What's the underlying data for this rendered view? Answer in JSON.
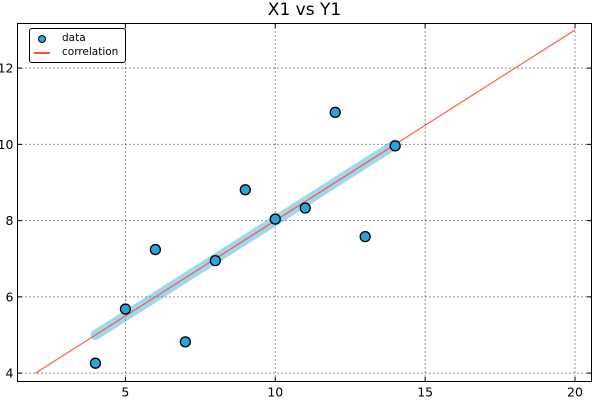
{
  "chart_data": {
    "type": "scatter",
    "title": "X1 vs Y1",
    "xlabel": "",
    "ylabel": "",
    "series": [
      {
        "name": "data",
        "kind": "scatter",
        "x": [
          10,
          8,
          13,
          9,
          11,
          14,
          6,
          4,
          12,
          7,
          5
        ],
        "y": [
          8.04,
          6.95,
          7.58,
          8.81,
          8.33,
          9.96,
          7.24,
          4.26,
          10.84,
          4.82,
          5.68
        ]
      },
      {
        "name": "correlation",
        "kind": "line",
        "x": [
          2,
          20
        ],
        "y": [
          4,
          13
        ]
      }
    ],
    "fit_band": {
      "x": [
        4,
        14
      ],
      "y": [
        5,
        10
      ]
    },
    "xlim": [
      1.4,
      20.55
    ],
    "ylim": [
      3.78,
      13.17
    ],
    "xticks": [
      5,
      10,
      15,
      20
    ],
    "yticks": [
      4,
      6,
      8,
      10,
      12
    ],
    "grid": "dotted",
    "legend": {
      "position": "upper left",
      "items": [
        "data",
        "correlation"
      ]
    },
    "colors": {
      "scatter_fill": "#30a2da",
      "scatter_edge": "#000000",
      "line": "#fc4f30",
      "band": "#30a2da",
      "band_opacity": 0.45,
      "grid": "#000000",
      "frame": "#000000",
      "background": "#ffffff",
      "text": "#000000"
    }
  }
}
